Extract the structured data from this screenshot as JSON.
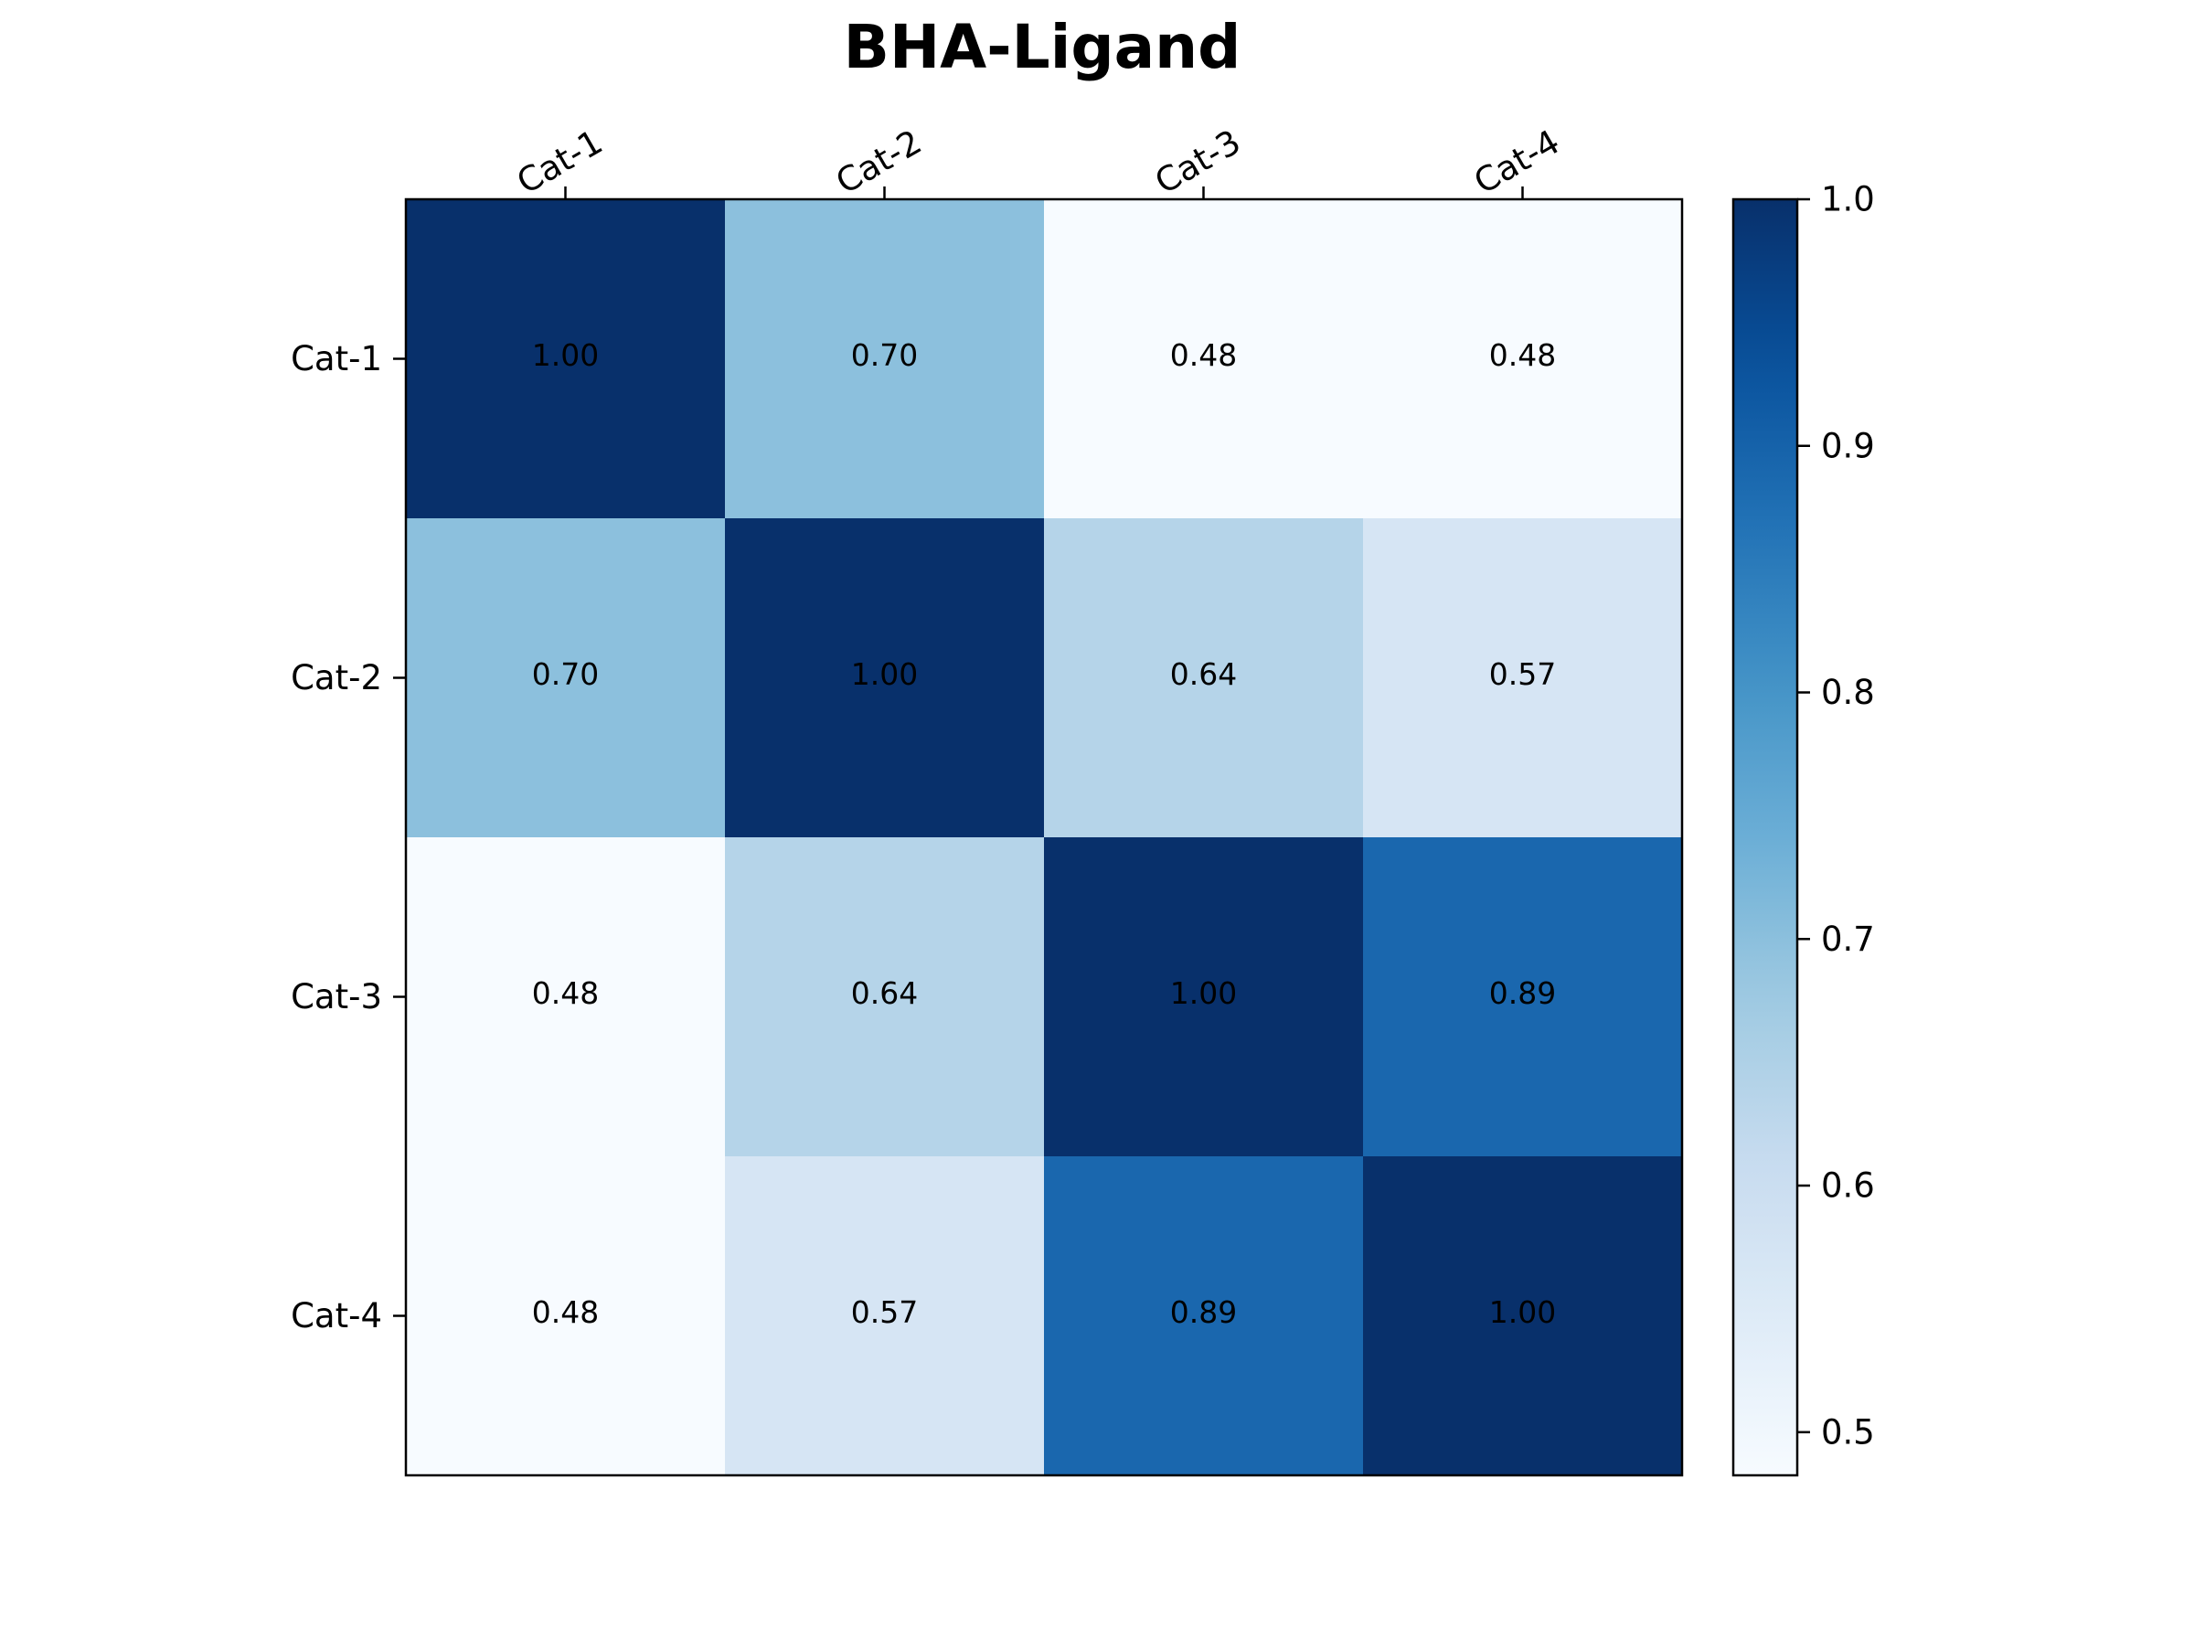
{
  "chart_data": {
    "type": "heatmap",
    "title": "BHA-Ligand",
    "x_categories": [
      "Cat-1",
      "Cat-2",
      "Cat-3",
      "Cat-4"
    ],
    "y_categories": [
      "Cat-1",
      "Cat-2",
      "Cat-3",
      "Cat-4"
    ],
    "values": [
      [
        1.0,
        0.7,
        0.48,
        0.48
      ],
      [
        0.7,
        1.0,
        0.64,
        0.57
      ],
      [
        0.48,
        0.64,
        1.0,
        0.89
      ],
      [
        0.48,
        0.57,
        0.89,
        1.0
      ]
    ],
    "value_labels": [
      [
        "1.00",
        "0.70",
        "0.48",
        "0.48"
      ],
      [
        "0.70",
        "1.00",
        "0.64",
        "0.57"
      ],
      [
        "0.48",
        "0.64",
        "1.00",
        "0.89"
      ],
      [
        "0.48",
        "0.57",
        "0.89",
        "1.00"
      ]
    ],
    "colormap": "Blues",
    "colorbar": {
      "range": [
        0.4825,
        1.0
      ],
      "ticks": [
        0.5,
        0.6,
        0.7,
        0.8,
        0.9,
        1.0
      ],
      "tick_labels": [
        "0.5",
        "0.6",
        "0.7",
        "0.8",
        "0.9",
        "1.0"
      ]
    },
    "x_tick_position": "top",
    "grid": false
  }
}
